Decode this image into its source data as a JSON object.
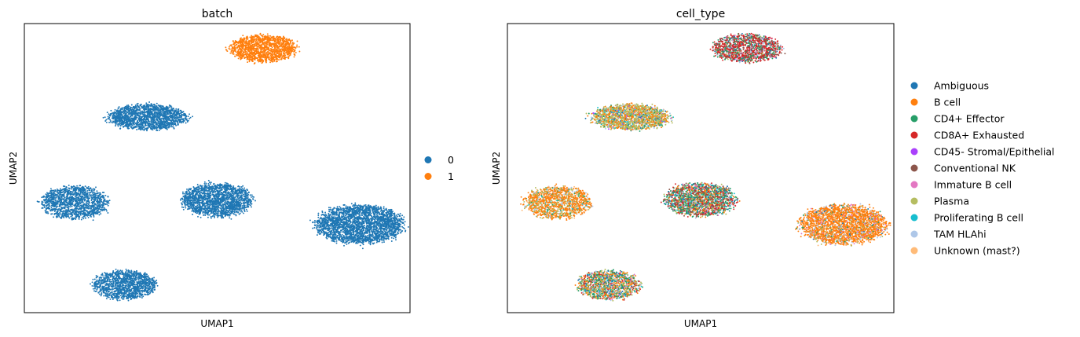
{
  "chart_data": [
    {
      "type": "scatter",
      "title": "batch",
      "xlabel": "UMAP1",
      "ylabel": "UMAP2",
      "xticks": false,
      "yticks": false,
      "legend_placement": "right",
      "legend": [
        {
          "label": "0",
          "color": "#1f77b4"
        },
        {
          "label": "1",
          "color": "#ff7f0e"
        }
      ],
      "clusters": [
        {
          "center": [
            6.2,
            9.1
          ],
          "size": [
            0.85,
            0.48
          ],
          "points": 1400,
          "mix": {
            "1": 1
          }
        },
        {
          "center": [
            3.2,
            6.6
          ],
          "size": [
            1.0,
            0.46
          ],
          "points": 1700,
          "mix": {
            "0": 1
          }
        },
        {
          "center": [
            1.3,
            3.5
          ],
          "size": [
            0.85,
            0.58
          ],
          "points": 1400,
          "mix": {
            "0": 1
          }
        },
        {
          "center": [
            5.0,
            3.6
          ],
          "size": [
            0.9,
            0.6
          ],
          "points": 1800,
          "mix": {
            "0": 1
          }
        },
        {
          "center": [
            8.7,
            2.7
          ],
          "size": [
            1.12,
            0.7
          ],
          "points": 2600,
          "mix": {
            "0": 1
          }
        },
        {
          "center": [
            2.6,
            0.5
          ],
          "size": [
            0.8,
            0.52
          ],
          "points": 1300,
          "mix": {
            "0": 1
          }
        }
      ]
    },
    {
      "type": "scatter",
      "title": "cell_type",
      "xlabel": "UMAP1",
      "ylabel": "UMAP2",
      "xticks": false,
      "yticks": false,
      "legend_placement": "right",
      "legend": [
        {
          "label": "Ambiguous",
          "color": "#1f77b4"
        },
        {
          "label": "B cell",
          "color": "#ff7f0e"
        },
        {
          "label": "CD4+ Effector",
          "color": "#279e68"
        },
        {
          "label": "CD8A+ Exhausted",
          "color": "#d62728"
        },
        {
          "label": "CD45- Stromal/Epithelial",
          "color": "#aa40fc"
        },
        {
          "label": "Conventional NK",
          "color": "#8c564b"
        },
        {
          "label": "Immature B cell",
          "color": "#e377c2"
        },
        {
          "label": "Plasma",
          "color": "#b5bd61"
        },
        {
          "label": "Proliferating B cell",
          "color": "#17becf"
        },
        {
          "label": "TAM HLAhi",
          "color": "#aec7e8"
        },
        {
          "label": "Unknown (mast?)",
          "color": "#ffbb78"
        }
      ],
      "clusters": [
        {
          "center": [
            6.2,
            9.1
          ],
          "size": [
            0.88,
            0.5
          ],
          "points": 1400,
          "mix": {
            "CD8A+ Exhausted": 0.45,
            "CD4+ Effector": 0.2,
            "Conventional NK": 0.15,
            "Ambiguous": 0.05,
            "TAM HLAhi": 0.07,
            "Immature B cell": 0.04,
            "Plasma": 0.04
          }
        },
        {
          "center": [
            3.2,
            6.6
          ],
          "size": [
            1.0,
            0.46
          ],
          "points": 1700,
          "mix": {
            "Plasma": 0.45,
            "B cell": 0.3,
            "CD4+ Effector": 0.07,
            "TAM HLAhi": 0.07,
            "Ambiguous": 0.04,
            "CD45- Stromal/Epithelial": 0.03,
            "Proliferating B cell": 0.04
          }
        },
        {
          "center": [
            1.3,
            3.5
          ],
          "size": [
            0.85,
            0.58
          ],
          "points": 1400,
          "mix": {
            "B cell": 0.6,
            "Plasma": 0.2,
            "TAM HLAhi": 0.08,
            "Unknown (mast?)": 0.05,
            "CD4+ Effector": 0.04,
            "Proliferating B cell": 0.03
          }
        },
        {
          "center": [
            5.0,
            3.6
          ],
          "size": [
            0.9,
            0.6
          ],
          "points": 1800,
          "mix": {
            "CD4+ Effector": 0.28,
            "CD8A+ Exhausted": 0.18,
            "Conventional NK": 0.12,
            "B cell": 0.12,
            "Plasma": 0.1,
            "Proliferating B cell": 0.06,
            "Ambiguous": 0.06,
            "Immature B cell": 0.04,
            "TAM HLAhi": 0.04
          }
        },
        {
          "center": [
            8.7,
            2.7
          ],
          "size": [
            1.12,
            0.7
          ],
          "points": 2600,
          "mix": {
            "B cell": 0.72,
            "TAM HLAhi": 0.08,
            "Plasma": 0.06,
            "Immature B cell": 0.05,
            "Unknown (mast?)": 0.04,
            "CD4+ Effector": 0.03,
            "Ambiguous": 0.02
          }
        },
        {
          "center": [
            2.6,
            0.5
          ],
          "size": [
            0.8,
            0.52
          ],
          "points": 1300,
          "mix": {
            "CD4+ Effector": 0.22,
            "B cell": 0.2,
            "Plasma": 0.22,
            "CD8A+ Exhausted": 0.08,
            "TAM HLAhi": 0.08,
            "Immature B cell": 0.06,
            "Ambiguous": 0.06,
            "Proliferating B cell": 0.04,
            "Conventional NK": 0.04
          }
        }
      ]
    }
  ]
}
